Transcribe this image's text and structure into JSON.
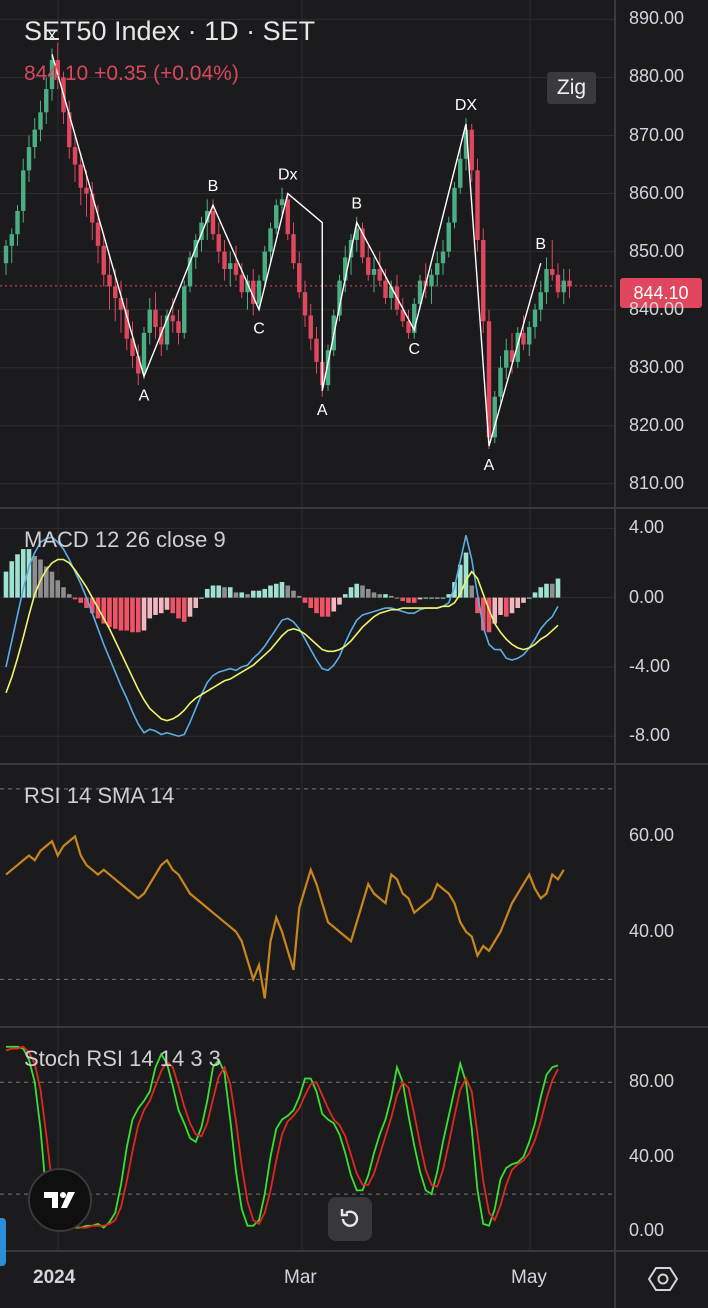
{
  "header": {
    "title": "SET50 Index · 1D · SET",
    "quote": "844.10 +0.35 (+0.04%)",
    "zig_button": "Zig"
  },
  "panes": {
    "macd_label": "MACD 12 26 close 9",
    "rsi_label": "RSI 14 SMA 14",
    "stoch_label": "Stoch RSI 14 14 3 3"
  },
  "colors": {
    "bull": "#4caf83",
    "bear": "#e0475d",
    "zigzag": "#ffffff",
    "macd_line": "#5aaee8",
    "signal_line": "#f1f56a",
    "hist_pos_strong": "#9fe2d2",
    "hist_pos_weak": "#8e8e8e",
    "hist_neg_strong": "#ef5466",
    "hist_neg_weak": "#f3b7bf",
    "rsi_line": "#c8861d",
    "stoch_k": "#39e12f",
    "stoch_d": "#e0281e",
    "price_line": "#e0475d"
  },
  "icons": {
    "logo": "tradingview-logo-icon",
    "reset": "reset-icon",
    "settings": "gear-icon"
  },
  "chart_data": [
    {
      "type": "candlestick",
      "title": "SET50 Index · 1D · SET",
      "ylim": [
        806,
        893
      ],
      "yticks": [
        810,
        820,
        830,
        840,
        850,
        860,
        870,
        880,
        890
      ],
      "ytick_labels": [
        "810.00",
        "820.00",
        "830.00",
        "840.00",
        "850.00",
        "860.00",
        "870.00",
        "880.00",
        "890.00"
      ],
      "last_price": 844.1,
      "last_price_label": "844.10",
      "xtick_labels": [
        "2024",
        "Mar",
        "May"
      ],
      "zigzag": [
        {
          "i": 8,
          "y": 884.0,
          "label": "x"
        },
        {
          "i": 24,
          "y": 828.5,
          "label": "A"
        },
        {
          "i": 36,
          "y": 858.0,
          "label": "B"
        },
        {
          "i": 44,
          "y": 840.0,
          "label": "C"
        },
        {
          "i": 49,
          "y": 860.0,
          "label": "Dx"
        },
        {
          "i": 55,
          "y": 855.0,
          "label": ""
        },
        {
          "i": 55,
          "y": 826.0,
          "label": "A"
        },
        {
          "i": 61,
          "y": 855.0,
          "label": "B"
        },
        {
          "i": 71,
          "y": 836.5,
          "label": "C"
        },
        {
          "i": 80,
          "y": 872.0,
          "label": "DX"
        },
        {
          "i": 84,
          "y": 816.5,
          "label": "A"
        },
        {
          "i": 93,
          "y": 848.0,
          "label": "B"
        }
      ],
      "candles": [
        [
          848,
          852,
          846,
          851
        ],
        [
          851,
          854,
          848,
          853
        ],
        [
          853,
          858,
          851,
          857
        ],
        [
          857,
          866,
          855,
          864
        ],
        [
          864,
          870,
          862,
          868
        ],
        [
          868,
          873,
          866,
          871
        ],
        [
          871,
          876,
          869,
          874
        ],
        [
          874,
          880,
          872,
          878
        ],
        [
          878,
          885,
          876,
          883
        ],
        [
          883,
          886,
          878,
          880
        ],
        [
          880,
          881,
          872,
          874
        ],
        [
          874,
          876,
          866,
          868
        ],
        [
          868,
          870,
          862,
          865
        ],
        [
          865,
          867,
          858,
          861
        ],
        [
          861,
          864,
          856,
          860
        ],
        [
          860,
          862,
          852,
          855
        ],
        [
          855,
          858,
          848,
          851
        ],
        [
          851,
          853,
          844,
          846
        ],
        [
          846,
          849,
          840,
          844
        ],
        [
          844,
          847,
          838,
          842
        ],
        [
          842,
          845,
          836,
          840
        ],
        [
          840,
          842,
          833,
          835
        ],
        [
          835,
          838,
          830,
          832
        ],
        [
          832,
          834,
          827,
          829
        ],
        [
          829,
          837,
          828,
          836
        ],
        [
          836,
          842,
          834,
          840
        ],
        [
          840,
          843,
          835,
          837
        ],
        [
          837,
          839,
          832,
          834
        ],
        [
          834,
          840,
          833,
          839
        ],
        [
          839,
          842,
          836,
          838
        ],
        [
          838,
          840,
          834,
          836
        ],
        [
          836,
          845,
          835,
          844
        ],
        [
          844,
          850,
          843,
          849
        ],
        [
          849,
          853,
          847,
          852
        ],
        [
          852,
          856,
          850,
          855
        ],
        [
          855,
          859,
          852,
          857
        ],
        [
          857,
          859,
          852,
          853
        ],
        [
          853,
          855,
          848,
          850
        ],
        [
          850,
          852,
          845,
          847
        ],
        [
          847,
          850,
          844,
          848
        ],
        [
          848,
          851,
          845,
          846
        ],
        [
          846,
          848,
          842,
          843
        ],
        [
          843,
          846,
          840,
          845
        ],
        [
          845,
          847,
          839,
          841
        ],
        [
          841,
          846,
          840,
          845
        ],
        [
          845,
          851,
          844,
          850
        ],
        [
          850,
          855,
          848,
          854
        ],
        [
          854,
          859,
          853,
          858
        ],
        [
          858,
          861,
          856,
          859
        ],
        [
          859,
          860,
          852,
          853
        ],
        [
          853,
          855,
          847,
          848
        ],
        [
          848,
          850,
          842,
          843
        ],
        [
          843,
          845,
          837,
          839
        ],
        [
          839,
          841,
          833,
          835
        ],
        [
          835,
          837,
          829,
          831
        ],
        [
          831,
          833,
          825,
          827
        ],
        [
          827,
          834,
          826,
          833
        ],
        [
          833,
          840,
          832,
          839
        ],
        [
          839,
          846,
          838,
          845
        ],
        [
          845,
          851,
          843,
          849
        ],
        [
          849,
          853,
          846,
          852
        ],
        [
          852,
          856,
          850,
          854
        ],
        [
          854,
          855,
          848,
          849
        ],
        [
          849,
          851,
          845,
          846
        ],
        [
          846,
          849,
          843,
          847
        ],
        [
          847,
          850,
          844,
          845
        ],
        [
          845,
          847,
          841,
          842
        ],
        [
          842,
          845,
          840,
          844
        ],
        [
          844,
          846,
          839,
          840
        ],
        [
          840,
          842,
          837,
          838
        ],
        [
          838,
          840,
          835,
          836
        ],
        [
          836,
          842,
          835,
          841
        ],
        [
          841,
          846,
          840,
          845
        ],
        [
          845,
          848,
          842,
          844
        ],
        [
          844,
          847,
          841,
          846
        ],
        [
          846,
          850,
          844,
          848
        ],
        [
          848,
          852,
          846,
          850
        ],
        [
          850,
          856,
          849,
          855
        ],
        [
          855,
          862,
          854,
          861
        ],
        [
          861,
          868,
          860,
          866
        ],
        [
          866,
          873,
          864,
          871
        ],
        [
          871,
          872,
          862,
          864
        ],
        [
          864,
          866,
          850,
          852
        ],
        [
          852,
          854,
          836,
          838
        ],
        [
          838,
          840,
          816,
          818
        ],
        [
          818,
          826,
          817,
          825
        ],
        [
          825,
          832,
          824,
          830
        ],
        [
          830,
          835,
          828,
          833
        ],
        [
          833,
          836,
          829,
          831
        ],
        [
          831,
          837,
          830,
          836
        ],
        [
          836,
          839,
          833,
          834
        ],
        [
          834,
          838,
          832,
          837
        ],
        [
          837,
          841,
          835,
          840
        ],
        [
          840,
          845,
          838,
          843
        ],
        [
          843,
          849,
          841,
          847
        ],
        [
          847,
          852,
          845,
          846
        ],
        [
          846,
          848,
          842,
          843
        ],
        [
          843,
          847,
          841,
          845
        ],
        [
          845,
          847,
          842,
          844
        ]
      ]
    },
    {
      "type": "macd",
      "title": "MACD 12 26 close 9",
      "ylim": [
        -9.2,
        5.0
      ],
      "yticks": [
        4,
        0,
        -4,
        -8
      ],
      "ytick_labels": [
        "4.00",
        "0.00",
        "-4.00",
        "-8.00"
      ],
      "macd": [
        -4.0,
        -2.5,
        -1.0,
        0.5,
        1.8,
        2.6,
        3.2,
        3.4,
        3.5,
        3.2,
        2.8,
        2.2,
        1.5,
        0.8,
        0.0,
        -0.9,
        -1.8,
        -2.7,
        -3.5,
        -4.3,
        -5.1,
        -5.8,
        -6.6,
        -7.3,
        -7.8,
        -7.6,
        -7.7,
        -7.9,
        -7.8,
        -7.9,
        -8.0,
        -7.9,
        -7.2,
        -6.4,
        -5.6,
        -4.9,
        -4.5,
        -4.3,
        -4.2,
        -4.1,
        -4.2,
        -4.0,
        -3.9,
        -3.5,
        -3.2,
        -2.8,
        -2.3,
        -1.8,
        -1.3,
        -1.2,
        -1.4,
        -1.8,
        -2.4,
        -3.0,
        -3.6,
        -4.1,
        -4.2,
        -3.9,
        -3.4,
        -2.6,
        -1.9,
        -1.3,
        -1.0,
        -0.9,
        -0.8,
        -0.7,
        -0.6,
        -0.6,
        -0.7,
        -0.8,
        -0.9,
        -0.9,
        -0.7,
        -0.6,
        -0.6,
        -0.6,
        -0.5,
        -0.3,
        0.6,
        2.1,
        3.6,
        2.2,
        0.2,
        -1.7,
        -2.7,
        -3.0,
        -3.0,
        -3.5,
        -3.6,
        -3.5,
        -3.3,
        -2.9,
        -2.4,
        -1.8,
        -1.4,
        -1.1,
        -0.5
      ],
      "signal": [
        -5.5,
        -4.6,
        -3.5,
        -2.3,
        -1.0,
        0.2,
        1.0,
        1.6,
        2.0,
        2.2,
        2.2,
        2.0,
        1.6,
        1.1,
        0.6,
        0.0,
        -0.6,
        -1.2,
        -1.8,
        -2.5,
        -3.2,
        -3.9,
        -4.6,
        -5.3,
        -5.9,
        -6.4,
        -6.7,
        -7.0,
        -7.1,
        -7.0,
        -6.8,
        -6.5,
        -6.1,
        -5.8,
        -5.6,
        -5.4,
        -5.2,
        -5.0,
        -4.8,
        -4.7,
        -4.5,
        -4.3,
        -4.1,
        -3.9,
        -3.6,
        -3.3,
        -3.0,
        -2.6,
        -2.2,
        -1.9,
        -1.8,
        -1.9,
        -2.1,
        -2.4,
        -2.7,
        -3.0,
        -3.1,
        -3.1,
        -3.0,
        -2.8,
        -2.5,
        -2.1,
        -1.7,
        -1.4,
        -1.1,
        -0.9,
        -0.8,
        -0.7,
        -0.7,
        -0.6,
        -0.6,
        -0.6,
        -0.6,
        -0.6,
        -0.6,
        -0.6,
        -0.5,
        -0.5,
        -0.3,
        0.2,
        1.0,
        1.5,
        1.1,
        0.2,
        -0.7,
        -1.5,
        -2.0,
        -2.4,
        -2.7,
        -2.9,
        -3.0,
        -2.9,
        -2.7,
        -2.4,
        -2.2,
        -1.9,
        -1.6
      ]
    },
    {
      "type": "line",
      "title": "RSI 14 SMA 14",
      "ylim": [
        20,
        75
      ],
      "yticks": [
        60,
        40
      ],
      "ytick_labels": [
        "60.00",
        "40.00"
      ],
      "guides": [
        70,
        30
      ],
      "rsi": [
        52,
        53,
        54,
        55,
        56,
        55,
        57,
        58,
        59,
        56,
        58,
        59,
        60,
        56,
        54,
        53,
        52,
        53,
        52,
        51,
        50,
        49,
        48,
        47,
        48,
        50,
        52,
        54,
        55,
        53,
        52,
        50,
        48,
        47,
        46,
        45,
        44,
        43,
        42,
        41,
        40,
        38,
        34,
        30,
        33,
        26,
        38,
        43,
        40,
        36,
        32,
        45,
        49,
        53,
        50,
        46,
        42,
        41,
        40,
        39,
        38,
        42,
        46,
        50,
        48,
        47,
        46,
        52,
        51,
        48,
        47,
        44,
        45,
        46,
        47,
        50,
        49,
        48,
        46,
        42,
        40,
        39,
        35,
        37,
        36,
        38,
        40,
        43,
        46,
        48,
        50,
        52,
        49,
        47,
        48,
        52,
        51,
        53
      ]
    },
    {
      "type": "line",
      "title": "Stoch RSI 14 14 3 3",
      "ylim": [
        -10,
        108
      ],
      "yticks": [
        80,
        40,
        0
      ],
      "ytick_labels": [
        "80.00",
        "40.00",
        "0.00"
      ],
      "guides": [
        80,
        20
      ],
      "k": [
        99,
        99,
        99,
        98,
        92,
        80,
        55,
        20,
        3,
        2,
        3,
        3,
        2,
        2,
        3,
        3,
        4,
        2,
        5,
        10,
        25,
        45,
        60,
        66,
        70,
        75,
        88,
        95,
        90,
        78,
        65,
        58,
        50,
        48,
        56,
        70,
        88,
        92,
        85,
        60,
        32,
        12,
        3,
        3,
        6,
        20,
        40,
        55,
        60,
        62,
        65,
        72,
        82,
        82,
        75,
        63,
        60,
        58,
        52,
        42,
        30,
        22,
        22,
        30,
        42,
        52,
        60,
        72,
        88,
        80,
        62,
        46,
        32,
        22,
        20,
        32,
        48,
        62,
        76,
        90,
        80,
        55,
        22,
        4,
        3,
        12,
        28,
        34,
        36,
        37,
        40,
        48,
        58,
        72,
        84,
        88,
        89
      ],
      "d": [
        97,
        98,
        98,
        99,
        96,
        90,
        76,
        52,
        26,
        8,
        3,
        3,
        3,
        2,
        2,
        3,
        3,
        3,
        4,
        6,
        13,
        27,
        43,
        57,
        65,
        70,
        78,
        86,
        91,
        88,
        78,
        67,
        58,
        52,
        51,
        58,
        71,
        83,
        88,
        79,
        59,
        35,
        16,
        6,
        4,
        10,
        22,
        38,
        52,
        59,
        62,
        66,
        73,
        79,
        80,
        73,
        66,
        60,
        57,
        51,
        41,
        31,
        25,
        25,
        31,
        41,
        51,
        61,
        73,
        80,
        77,
        63,
        47,
        33,
        25,
        24,
        33,
        47,
        62,
        76,
        82,
        75,
        52,
        27,
        10,
        6,
        14,
        25,
        33,
        36,
        38,
        42,
        49,
        59,
        71,
        81,
        87
      ]
    }
  ]
}
